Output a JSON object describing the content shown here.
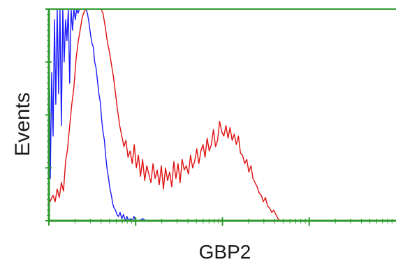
{
  "chart_data": {
    "type": "line",
    "xlabel": "GBP2",
    "ylabel": "Events",
    "xlim": [
      0,
      1
    ],
    "ylim": [
      0,
      1
    ],
    "grid": false,
    "legend": "none",
    "colors": {
      "axis": "#2e9a2e",
      "blue_series": "#1a1aff",
      "red_series": "#e01010",
      "background": "#ffffff"
    },
    "series": [
      {
        "color": "#1a1aff",
        "x": [
          0.0,
          0.004,
          0.008,
          0.012,
          0.016,
          0.02,
          0.024,
          0.028,
          0.032,
          0.036,
          0.04,
          0.044,
          0.048,
          0.052,
          0.056,
          0.06,
          0.064,
          0.068,
          0.072,
          0.076,
          0.08,
          0.084,
          0.088,
          0.092,
          0.096,
          0.1,
          0.104,
          0.108,
          0.112,
          0.116,
          0.12,
          0.124,
          0.128,
          0.132,
          0.136,
          0.14,
          0.144,
          0.148,
          0.152,
          0.156,
          0.16,
          0.164,
          0.168,
          0.172,
          0.176,
          0.18,
          0.184,
          0.188,
          0.192,
          0.196,
          0.2,
          0.205,
          0.21,
          0.215,
          0.22,
          0.225,
          0.23,
          0.235,
          0.24,
          0.245,
          0.25,
          0.26,
          0.27,
          0.28
        ],
        "values": [
          1.0,
          0.2,
          0.7,
          0.4,
          0.95,
          0.55,
          1.0,
          0.6,
          1.0,
          0.45,
          1.0,
          0.75,
          0.95,
          0.85,
          1.0,
          0.65,
          1.0,
          0.9,
          1.0,
          0.95,
          1.0,
          0.98,
          1.0,
          1.0,
          1.0,
          1.0,
          1.0,
          1.0,
          0.97,
          0.93,
          0.88,
          0.84,
          0.82,
          0.75,
          0.72,
          0.66,
          0.6,
          0.56,
          0.48,
          0.42,
          0.38,
          0.3,
          0.24,
          0.2,
          0.15,
          0.12,
          0.08,
          0.06,
          0.05,
          0.03,
          0.02,
          0.04,
          0.01,
          0.03,
          0.0,
          0.02,
          0.0,
          0.01,
          0.0,
          0.02,
          0.0,
          0.0,
          0.01,
          0.0
        ]
      },
      {
        "color": "#e01010",
        "x": [
          0.0,
          0.006,
          0.012,
          0.018,
          0.024,
          0.03,
          0.036,
          0.042,
          0.048,
          0.054,
          0.06,
          0.066,
          0.072,
          0.078,
          0.084,
          0.09,
          0.096,
          0.102,
          0.108,
          0.114,
          0.12,
          0.126,
          0.132,
          0.138,
          0.144,
          0.15,
          0.156,
          0.162,
          0.168,
          0.174,
          0.18,
          0.186,
          0.192,
          0.198,
          0.204,
          0.21,
          0.216,
          0.222,
          0.228,
          0.234,
          0.24,
          0.246,
          0.252,
          0.258,
          0.264,
          0.27,
          0.276,
          0.282,
          0.288,
          0.294,
          0.3,
          0.306,
          0.312,
          0.318,
          0.324,
          0.33,
          0.336,
          0.342,
          0.348,
          0.354,
          0.36,
          0.366,
          0.372,
          0.378,
          0.384,
          0.39,
          0.396,
          0.402,
          0.408,
          0.414,
          0.42,
          0.426,
          0.432,
          0.438,
          0.444,
          0.45,
          0.456,
          0.462,
          0.468,
          0.474,
          0.48,
          0.486,
          0.492,
          0.498,
          0.504,
          0.51,
          0.516,
          0.522,
          0.528,
          0.534,
          0.54,
          0.546,
          0.552,
          0.558,
          0.564,
          0.57,
          0.576,
          0.582,
          0.588,
          0.594,
          0.6,
          0.606,
          0.612,
          0.618,
          0.624,
          0.63,
          0.636,
          0.642,
          0.648,
          0.654,
          0.66,
          0.666
        ],
        "values": [
          0.08,
          0.1,
          0.12,
          0.09,
          0.15,
          0.11,
          0.18,
          0.14,
          0.28,
          0.34,
          0.45,
          0.55,
          0.63,
          0.76,
          0.84,
          0.9,
          0.96,
          0.99,
          1.0,
          1.0,
          1.0,
          1.0,
          1.0,
          1.0,
          1.0,
          1.0,
          0.98,
          0.92,
          0.85,
          0.8,
          0.74,
          0.68,
          0.6,
          0.52,
          0.45,
          0.4,
          0.35,
          0.38,
          0.3,
          0.33,
          0.27,
          0.36,
          0.25,
          0.31,
          0.21,
          0.29,
          0.19,
          0.26,
          0.22,
          0.18,
          0.27,
          0.2,
          0.24,
          0.17,
          0.26,
          0.15,
          0.25,
          0.19,
          0.23,
          0.16,
          0.28,
          0.2,
          0.27,
          0.18,
          0.29,
          0.24,
          0.26,
          0.22,
          0.31,
          0.25,
          0.28,
          0.34,
          0.27,
          0.33,
          0.36,
          0.3,
          0.39,
          0.33,
          0.36,
          0.43,
          0.35,
          0.38,
          0.47,
          0.42,
          0.4,
          0.45,
          0.39,
          0.44,
          0.38,
          0.41,
          0.36,
          0.4,
          0.32,
          0.31,
          0.27,
          0.29,
          0.23,
          0.26,
          0.2,
          0.18,
          0.16,
          0.13,
          0.12,
          0.09,
          0.11,
          0.07,
          0.06,
          0.04,
          0.05,
          0.03,
          0.01,
          0.0
        ]
      }
    ]
  }
}
